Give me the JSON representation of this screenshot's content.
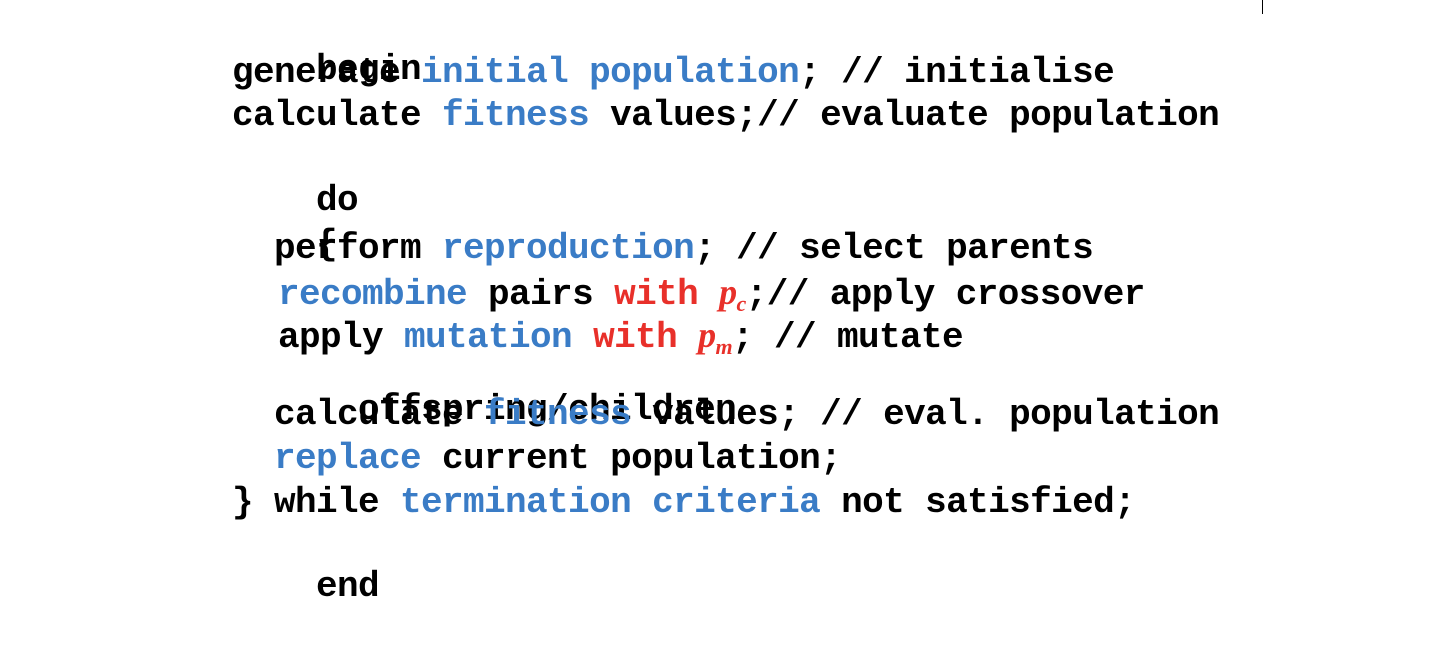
{
  "code": {
    "begin": "begin",
    "line2": {
      "a": "generate ",
      "b": "initial population",
      "c": "; // initialise"
    },
    "line3": {
      "a": "calculate ",
      "b": "fitness",
      "c": " values;// evaluate population"
    },
    "do": "do",
    "open_brace": "{",
    "line6": {
      "a": "perform ",
      "b": "reproduction",
      "c": "; // select parents"
    },
    "line7": {
      "a": "recombine",
      "b": " pairs ",
      "c": "with ",
      "d": "p",
      "e": "c",
      "f": ";// apply crossover"
    },
    "line8": {
      "a": "apply ",
      "b": "mutation",
      "c": " with ",
      "d": "p",
      "e": "m",
      "f": "; // mutate"
    },
    "line9": "offspring/children",
    "line10": {
      "a": "calculate ",
      "b": "fitness",
      "c": " values; // eval. population"
    },
    "line11": {
      "a": "replace",
      "b": " current population;"
    },
    "line12": {
      "a": "} while ",
      "b": "termination criteria",
      "c": " not satisfied;"
    },
    "end": "end"
  },
  "colors": {
    "keyword_blue": "#3a7cc6",
    "keyword_red": "#e8302a",
    "text": "#000000"
  }
}
